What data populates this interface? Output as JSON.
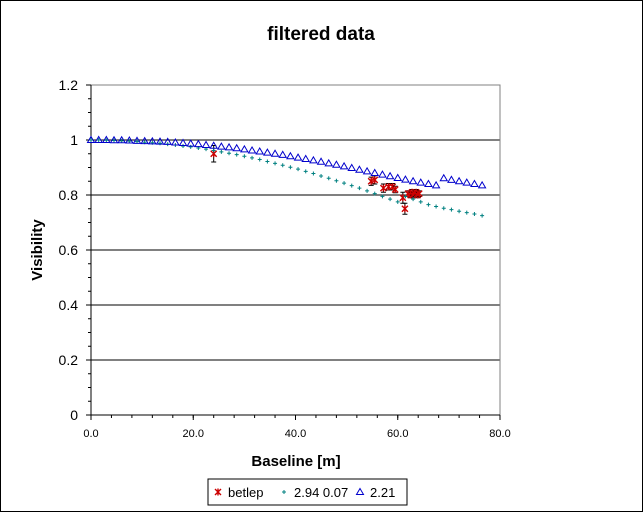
{
  "chart_data": {
    "type": "scatter",
    "title": "filtered data",
    "xlabel": "Baseline [m]",
    "ylabel": "Visibility",
    "xlim": [
      0,
      80
    ],
    "ylim": [
      0,
      1.2
    ],
    "x_ticks": [
      "0.0",
      "20.0",
      "40.0",
      "60.0",
      "80.0"
    ],
    "y_ticks": [
      "0",
      "0.2",
      "0.4",
      "0.6",
      "0.8",
      "1",
      "1.2"
    ],
    "grid": "horizontal",
    "legend_position": "bottom",
    "series": [
      {
        "name": "betlep",
        "marker": "star",
        "color": "#cc0000",
        "points": [
          {
            "x": 24.0,
            "y": 0.95,
            "err": 0.03
          },
          {
            "x": 54.8,
            "y": 0.85,
            "err": 0.015
          },
          {
            "x": 55.5,
            "y": 0.855,
            "err": 0.015
          },
          {
            "x": 57.2,
            "y": 0.825,
            "err": 0.015
          },
          {
            "x": 58.2,
            "y": 0.83,
            "err": 0.012
          },
          {
            "x": 59.0,
            "y": 0.83,
            "err": 0.012
          },
          {
            "x": 59.5,
            "y": 0.82,
            "err": 0.012
          },
          {
            "x": 61.0,
            "y": 0.79,
            "err": 0.02
          },
          {
            "x": 61.4,
            "y": 0.75,
            "err": 0.02
          },
          {
            "x": 62.0,
            "y": 0.805,
            "err": 0.01
          },
          {
            "x": 62.5,
            "y": 0.8,
            "err": 0.01
          },
          {
            "x": 62.8,
            "y": 0.81,
            "err": 0.01
          },
          {
            "x": 63.0,
            "y": 0.8,
            "err": 0.01
          },
          {
            "x": 63.3,
            "y": 0.805,
            "err": 0.01
          },
          {
            "x": 63.6,
            "y": 0.81,
            "err": 0.01
          },
          {
            "x": 63.9,
            "y": 0.8,
            "err": 0.01
          },
          {
            "x": 64.2,
            "y": 0.805,
            "err": 0.01
          }
        ]
      },
      {
        "name": "2.94 0.07",
        "marker": "plus",
        "color": "#008080",
        "x": [
          0,
          1.5,
          3,
          4.5,
          6,
          7.5,
          9,
          10.5,
          12,
          13.5,
          15,
          16.5,
          18,
          19.5,
          21,
          22.5,
          24,
          25.5,
          27,
          28.5,
          30,
          31.5,
          33,
          34.5,
          36,
          37.5,
          39,
          40.5,
          42,
          43.5,
          45,
          46.5,
          48,
          49.5,
          51,
          52.5,
          54,
          55.5,
          57,
          58.5,
          60,
          61.5,
          63,
          64.5,
          66,
          67.5,
          69,
          70.5,
          72,
          73.5,
          75,
          76.5
        ],
        "y": [
          1.0,
          1.0,
          0.999,
          0.998,
          0.997,
          0.996,
          0.994,
          0.992,
          0.99,
          0.988,
          0.985,
          0.982,
          0.978,
          0.975,
          0.971,
          0.967,
          0.962,
          0.957,
          0.952,
          0.947,
          0.941,
          0.935,
          0.929,
          0.922,
          0.915,
          0.908,
          0.901,
          0.894,
          0.886,
          0.878,
          0.869,
          0.861,
          0.852,
          0.843,
          0.834,
          0.825,
          0.815,
          0.805,
          0.795,
          0.785,
          0.775,
          0.795,
          0.785,
          0.775,
          0.765,
          0.758,
          0.752,
          0.747,
          0.741,
          0.736,
          0.731,
          0.725
        ]
      },
      {
        "name": "2.21",
        "marker": "triangle",
        "color": "#0000cc",
        "x": [
          0,
          1.5,
          3,
          4.5,
          6,
          7.5,
          9,
          10.5,
          12,
          13.5,
          15,
          16.5,
          18,
          19.5,
          21,
          22.5,
          24,
          25.5,
          27,
          28.5,
          30,
          31.5,
          33,
          34.5,
          36,
          37.5,
          39,
          40.5,
          42,
          43.5,
          45,
          46.5,
          48,
          49.5,
          51,
          52.5,
          54,
          55.5,
          57,
          58.5,
          60,
          61.5,
          63,
          64.5,
          66,
          67.5,
          69,
          70.5,
          72,
          73.5,
          75,
          76.5
        ],
        "y": [
          1.0,
          1.0,
          1.0,
          0.999,
          0.999,
          0.998,
          0.997,
          0.996,
          0.995,
          0.994,
          0.993,
          0.991,
          0.989,
          0.987,
          0.985,
          0.982,
          0.979,
          0.976,
          0.973,
          0.97,
          0.966,
          0.962,
          0.958,
          0.954,
          0.95,
          0.946,
          0.941,
          0.936,
          0.931,
          0.926,
          0.921,
          0.915,
          0.91,
          0.904,
          0.898,
          0.892,
          0.886,
          0.88,
          0.874,
          0.868,
          0.862,
          0.856,
          0.85,
          0.845,
          0.84,
          0.835,
          0.861,
          0.855,
          0.85,
          0.845,
          0.84,
          0.835
        ]
      }
    ]
  }
}
